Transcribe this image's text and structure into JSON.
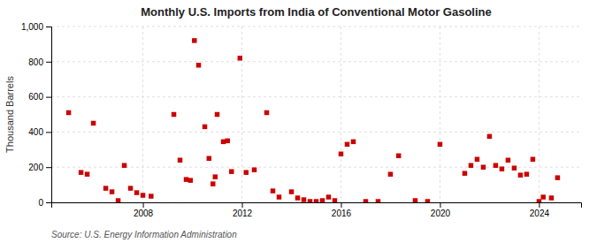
{
  "chart_data": {
    "type": "scatter",
    "title": "Monthly U.S. Imports from India of Conventional Motor Gasoline",
    "ylabel": "Thousand Barrels",
    "annotations": [
      "Source: U.S. Energy Information Administration"
    ],
    "color": "#cc0000",
    "marker": "square",
    "grid": true,
    "xlim": [
      2004.3,
      2025.7
    ],
    "xticks": [
      2008,
      2012,
      2016,
      2020,
      2024
    ],
    "ylim": [
      0,
      1000
    ],
    "yticks": [
      0,
      200,
      400,
      600,
      800,
      {
        "value": 1000,
        "label": "1,000"
      }
    ],
    "x": [
      2005.0,
      2005.5,
      2005.75,
      2006.0,
      2006.5,
      2006.75,
      2007.0,
      2007.25,
      2007.5,
      2007.75,
      2008.0,
      2008.33,
      2009.25,
      2009.5,
      2009.75,
      2009.92,
      2010.08,
      2010.25,
      2010.5,
      2010.67,
      2010.83,
      2010.92,
      2011.0,
      2011.25,
      2011.42,
      2011.58,
      2011.92,
      2012.17,
      2012.5,
      2013.0,
      2013.25,
      2013.5,
      2014.0,
      2014.25,
      2014.5,
      2014.75,
      2015.0,
      2015.25,
      2015.5,
      2015.75,
      2016.0,
      2016.25,
      2016.5,
      2017.0,
      2017.5,
      2018.0,
      2018.33,
      2019.0,
      2019.5,
      2020.0,
      2021.0,
      2021.25,
      2021.5,
      2021.75,
      2022.0,
      2022.25,
      2022.5,
      2022.75,
      2023.0,
      2023.25,
      2023.5,
      2023.75,
      2024.0,
      2024.17,
      2024.5,
      2024.75
    ],
    "values": [
      510,
      170,
      160,
      450,
      80,
      60,
      10,
      210,
      80,
      55,
      40,
      35,
      500,
      240,
      130,
      125,
      920,
      780,
      430,
      250,
      105,
      145,
      500,
      345,
      350,
      175,
      820,
      170,
      185,
      510,
      65,
      30,
      60,
      25,
      15,
      5,
      5,
      10,
      30,
      10,
      275,
      330,
      345,
      5,
      5,
      160,
      265,
      10,
      5,
      330,
      165,
      210,
      245,
      200,
      375,
      210,
      190,
      240,
      195,
      155,
      160,
      245,
      5,
      30,
      25,
      140
    ]
  }
}
